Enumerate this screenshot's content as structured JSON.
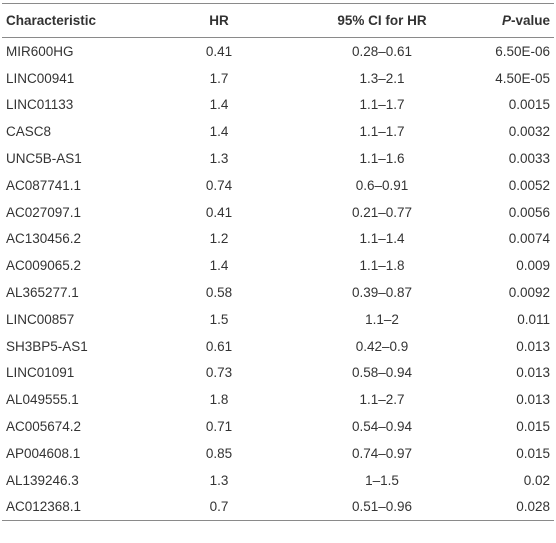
{
  "table": {
    "header": [
      "Characteristic",
      "HR",
      "95% CI for HR",
      "P-value"
    ],
    "rows": [
      [
        "MIR600HG",
        "0.41",
        "0.28–0.61",
        "6.50E-06"
      ],
      [
        "LINC00941",
        "1.7",
        "1.3–2.1",
        "4.50E-05"
      ],
      [
        "LINC01133",
        "1.4",
        "1.1–1.7",
        "0.0015"
      ],
      [
        "CASC8",
        "1.4",
        "1.1–1.7",
        "0.0032"
      ],
      [
        "UNC5B-AS1",
        "1.3",
        "1.1–1.6",
        "0.0033"
      ],
      [
        "AC087741.1",
        "0.74",
        "0.6–0.91",
        "0.0052"
      ],
      [
        "AC027097.1",
        "0.41",
        "0.21–0.77",
        "0.0056"
      ],
      [
        "AC130456.2",
        "1.2",
        "1.1–1.4",
        "0.0074"
      ],
      [
        "AC009065.2",
        "1.4",
        "1.1–1.8",
        "0.009"
      ],
      [
        "AL365277.1",
        "0.58",
        "0.39–0.87",
        "0.0092"
      ],
      [
        "LINC00857",
        "1.5",
        "1.1–2",
        "0.011"
      ],
      [
        "SH3BP5-AS1",
        "0.61",
        "0.42–0.9",
        "0.013"
      ],
      [
        "LINC01091",
        "0.73",
        "0.58–0.94",
        "0.013"
      ],
      [
        "AL049555.1",
        "1.8",
        "1.1–2.7",
        "0.013"
      ],
      [
        "AC005674.2",
        "0.71",
        "0.54–0.94",
        "0.015"
      ],
      [
        "AP004608.1",
        "0.85",
        "0.74–0.97",
        "0.015"
      ],
      [
        "AL139246.3",
        "1.3",
        "1–1.5",
        "0.02"
      ],
      [
        "AC012368.1",
        "0.7",
        "0.51–0.96",
        "0.028"
      ]
    ]
  }
}
